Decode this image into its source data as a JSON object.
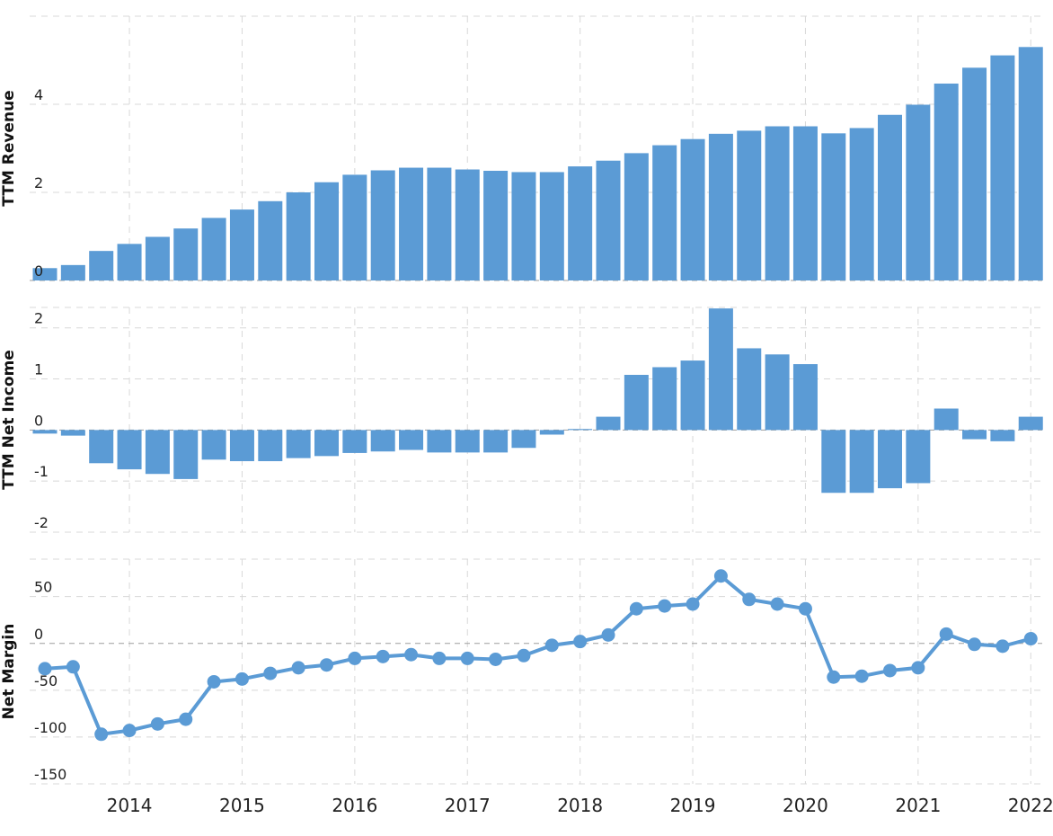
{
  "chart_data": {
    "type": "bar+line",
    "x": [
      "2013-Q2",
      "2013-Q3",
      "2013-Q4",
      "2014-Q1",
      "2014-Q2",
      "2014-Q3",
      "2014-Q4",
      "2015-Q1",
      "2015-Q2",
      "2015-Q3",
      "2015-Q4",
      "2016-Q1",
      "2016-Q2",
      "2016-Q3",
      "2016-Q4",
      "2017-Q1",
      "2017-Q2",
      "2017-Q3",
      "2017-Q4",
      "2018-Q1",
      "2018-Q2",
      "2018-Q3",
      "2018-Q4",
      "2019-Q1",
      "2019-Q2",
      "2019-Q3",
      "2019-Q4",
      "2020-Q1",
      "2020-Q2",
      "2020-Q3",
      "2020-Q4",
      "2021-Q1",
      "2021-Q2",
      "2021-Q3",
      "2021-Q4",
      "2022-Q1"
    ],
    "x_tick_labels": [
      "2014",
      "2015",
      "2016",
      "2017",
      "2018",
      "2019",
      "2020",
      "2021",
      "2022"
    ],
    "grid": true,
    "color": "#5b9bd5",
    "panels": [
      {
        "name": "revenue",
        "type": "bar",
        "ylabel": "TTM Revenue",
        "ylim": [
          0,
          6
        ],
        "yticks": [
          0,
          2,
          4
        ],
        "values": [
          0.28,
          0.35,
          0.67,
          0.83,
          0.99,
          1.18,
          1.42,
          1.61,
          1.8,
          2.0,
          2.23,
          2.4,
          2.5,
          2.56,
          2.56,
          2.52,
          2.49,
          2.46,
          2.46,
          2.59,
          2.72,
          2.89,
          3.07,
          3.21,
          3.33,
          3.4,
          3.5,
          3.5,
          3.34,
          3.46,
          3.76,
          3.99,
          4.47,
          4.83,
          5.11,
          5.3
        ]
      },
      {
        "name": "net_income",
        "type": "bar",
        "ylabel": "TTM Net Income",
        "ylim": [
          -2,
          2.4
        ],
        "yticks": [
          -2,
          -1,
          0,
          1,
          2
        ],
        "values": [
          -0.07,
          -0.11,
          -0.65,
          -0.77,
          -0.86,
          -0.96,
          -0.58,
          -0.61,
          -0.61,
          -0.55,
          -0.51,
          -0.45,
          -0.42,
          -0.39,
          -0.44,
          -0.44,
          -0.44,
          -0.35,
          -0.09,
          0.02,
          0.26,
          1.08,
          1.23,
          1.36,
          2.38,
          1.6,
          1.48,
          1.29,
          -1.23,
          -1.23,
          -1.14,
          -1.04,
          0.42,
          -0.18,
          -0.22,
          0.26
        ]
      },
      {
        "name": "net_margin",
        "type": "line",
        "ylabel": "Net Margin",
        "ylim": [
          -150,
          90
        ],
        "yticks": [
          -150,
          -100,
          -50,
          0,
          50
        ],
        "values": [
          -27,
          -25,
          -97,
          -93,
          -86,
          -81,
          -41,
          -38,
          -32,
          -26,
          -23,
          -16,
          -14,
          -12,
          -16,
          -16,
          -17,
          -13,
          -2,
          2,
          9,
          37,
          40,
          42,
          72,
          47,
          42,
          37,
          -36,
          -35,
          -29,
          -26,
          10,
          -1,
          -3,
          5
        ]
      }
    ]
  }
}
